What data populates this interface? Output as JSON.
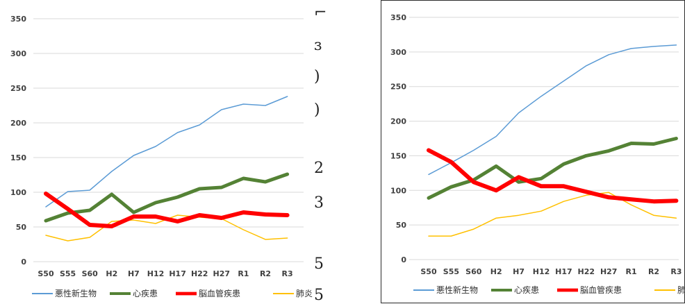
{
  "chart_data": [
    {
      "type": "line",
      "categories": [
        "S50",
        "S55",
        "S60",
        "H2",
        "H7",
        "H12",
        "H17",
        "H22",
        "H27",
        "R1",
        "R2",
        "R3"
      ],
      "ylim": [
        0,
        350
      ],
      "yticks": [
        0,
        50,
        100,
        150,
        200,
        250,
        300,
        350
      ],
      "grid": true,
      "legend": "bottom",
      "series": [
        {
          "name": "悪性新生物",
          "color": "#5b9bd5",
          "width": 1.5,
          "values": [
            79,
            101,
            103,
            130,
            153,
            166,
            186,
            197,
            219,
            227,
            225,
            238
          ]
        },
        {
          "name": "心疾患",
          "color": "#548235",
          "width": 5,
          "values": [
            59,
            70,
            74,
            97,
            71,
            85,
            93,
            105,
            107,
            120,
            115,
            126
          ]
        },
        {
          "name": "脳血管疾患",
          "color": "#ff0000",
          "width": 6,
          "values": [
            98,
            76,
            53,
            51,
            65,
            65,
            58,
            67,
            63,
            71,
            68,
            67
          ]
        },
        {
          "name": "肺炎",
          "color": "#ffc000",
          "width": 1.5,
          "values": [
            38,
            30,
            35,
            58,
            60,
            55,
            67,
            64,
            62,
            46,
            32,
            34
          ]
        }
      ]
    },
    {
      "type": "line",
      "categories": [
        "S50",
        "S55",
        "S60",
        "H2",
        "H7",
        "H12",
        "H17",
        "H22",
        "H27",
        "R1",
        "R2",
        "R3"
      ],
      "ylim": [
        0,
        350
      ],
      "yticks": [
        0,
        50,
        100,
        150,
        200,
        250,
        300,
        350
      ],
      "grid": true,
      "legend": "bottom",
      "series": [
        {
          "name": "悪性新生物",
          "color": "#5b9bd5",
          "width": 1.5,
          "values": [
            123,
            140,
            158,
            178,
            212,
            236,
            258,
            280,
            296,
            305,
            308,
            310
          ]
        },
        {
          "name": "心疾患",
          "color": "#548235",
          "width": 5,
          "values": [
            89,
            105,
            115,
            135,
            112,
            117,
            138,
            150,
            157,
            168,
            167,
            175
          ]
        },
        {
          "name": "脳血管疾患",
          "color": "#ff0000",
          "width": 6,
          "values": [
            158,
            141,
            112,
            100,
            119,
            106,
            106,
            98,
            90,
            87,
            84,
            85
          ]
        },
        {
          "name": "肺炎",
          "color": "#ffc000",
          "width": 1.5,
          "values": [
            34,
            34,
            44,
            60,
            64,
            70,
            84,
            93,
            97,
            79,
            64,
            60
          ]
        }
      ]
    }
  ]
}
